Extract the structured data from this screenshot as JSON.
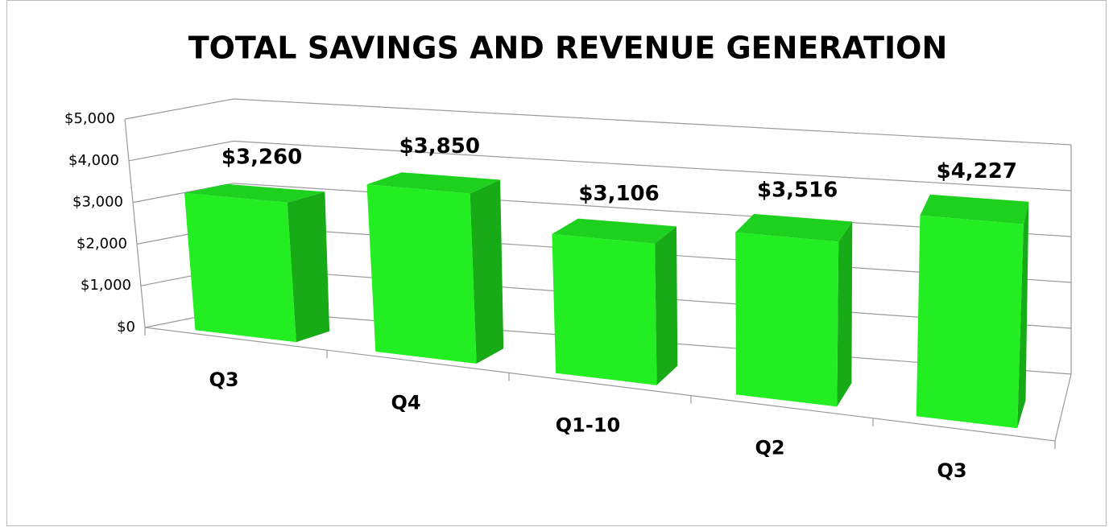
{
  "chart_data": {
    "type": "bar3d",
    "title": "TOTAL SAVINGS AND REVENUE GENERATION",
    "categories": [
      "Q3",
      "Q4",
      "Q1-10",
      "Q2",
      "Q3"
    ],
    "values": [
      3260,
      3850,
      3106,
      3516,
      4227
    ],
    "value_labels": [
      "$3,260",
      "$3,850",
      "$3,106",
      "$3,516",
      "$4,227"
    ],
    "color": "#22ee22",
    "ylim": [
      0,
      5000
    ],
    "yticks": [
      {
        "value": 0,
        "label": "$0"
      },
      {
        "value": 1000,
        "label": "$1,000"
      },
      {
        "value": 2000,
        "label": "$2,000"
      },
      {
        "value": 3000,
        "label": "$3,000"
      },
      {
        "value": 4000,
        "label": "$4,000"
      },
      {
        "value": 5000,
        "label": "$5,000"
      }
    ],
    "grid": true
  }
}
